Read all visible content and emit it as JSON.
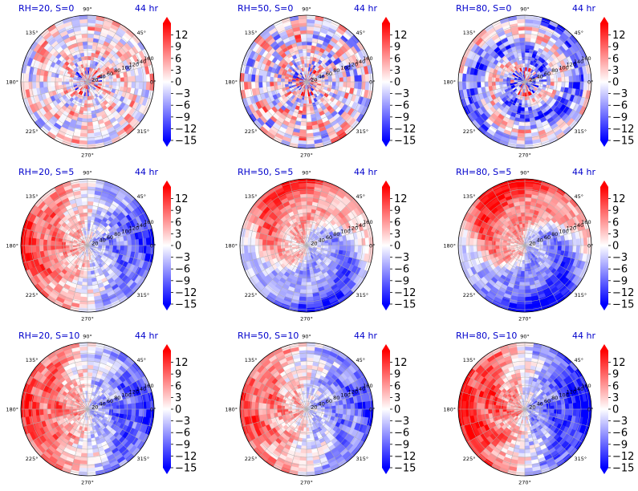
{
  "chart_data": {
    "type": "heatmap",
    "projection": "polar",
    "time_label": "44 hr",
    "radial_ticks": [
      "20",
      "40",
      "60",
      "80",
      "100",
      "120",
      "140",
      "160"
    ],
    "angle_ticks": [
      "90°",
      "45°",
      "0°",
      "315°",
      "270°",
      "225°",
      "180°",
      "135°"
    ],
    "colorbar": {
      "ticks": [
        "12",
        "9",
        "6",
        "3",
        "0",
        "−3",
        "−6",
        "−9",
        "−12",
        "−15"
      ],
      "range": [
        -15,
        15
      ],
      "colormap": "bwr",
      "extend": "both"
    },
    "colors": {
      "title": "#0000cc",
      "positive": "#ff0000",
      "negative": "#0000ff",
      "neutral": "#ffffff"
    },
    "panels": [
      {
        "title": "RH=20, S=0",
        "pattern": "speckle",
        "mean_sign": 0.05,
        "amplitude": 0.35
      },
      {
        "title": "RH=50, S=0",
        "pattern": "speckle",
        "mean_sign": 0.0,
        "amplitude": 0.55
      },
      {
        "title": "RH=80, S=0",
        "pattern": "spiral",
        "mean_sign": -0.25,
        "amplitude": 0.7
      },
      {
        "title": "RH=20, S=5",
        "pattern": "dipole",
        "mean_sign": 0.0,
        "amplitude": 0.65
      },
      {
        "title": "RH=50, S=5",
        "pattern": "dipole-swirl",
        "mean_sign": -0.05,
        "amplitude": 0.6
      },
      {
        "title": "RH=80, S=5",
        "pattern": "dipole-swirl",
        "mean_sign": -0.1,
        "amplitude": 0.75
      },
      {
        "title": "RH=20, S=10",
        "pattern": "dipole",
        "mean_sign": 0.0,
        "amplitude": 0.7
      },
      {
        "title": "RH=50, S=10",
        "pattern": "dipole",
        "mean_sign": 0.0,
        "amplitude": 0.6
      },
      {
        "title": "RH=80, S=10",
        "pattern": "dipole",
        "mean_sign": 0.0,
        "amplitude": 0.85
      }
    ]
  }
}
